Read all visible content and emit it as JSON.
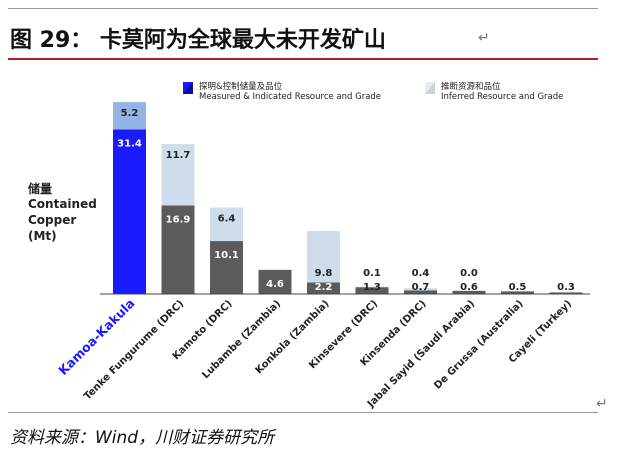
{
  "header": {
    "figure_title": "图 29： 卡莫阿为全球最大未开发矿山"
  },
  "footer": {
    "source": "资料来源：Wind，川财证券研究所"
  },
  "chart_data": {
    "type": "bar",
    "stacked": true,
    "ylabel_cn": "储量",
    "ylabel_lines": [
      "Contained",
      "Copper",
      "(Mt)"
    ],
    "ylim": [
      0,
      37
    ],
    "categories": [
      "Kamoa-Kakula",
      "Tenke Fungurume (DRC)",
      "Kamoto (DRC)",
      "Lubambe (Zambia)",
      "Konkola (Zambia)",
      "Kinsevere (DRC)",
      "Kinsenda (DRC)",
      "Jabal Sayid (Saudi Arabia)",
      "De Grussa (Australia)",
      "Cayeli (Turkey)"
    ],
    "highlight_category": "Kamoa-Kakula",
    "series": [
      {
        "name_cn": "探明&控制储量及品位",
        "name": "Measured & Indicated Resource and Grade",
        "values": [
          31.4,
          16.9,
          10.1,
          4.6,
          2.2,
          1.3,
          0.7,
          0.6,
          0.5,
          0.3
        ],
        "color": "#5b5b5b",
        "highlight_color": "#1a1aff"
      },
      {
        "name_cn": "推断资源和品位",
        "name": "Inferred Resource and Grade",
        "values": [
          5.2,
          11.7,
          6.4,
          null,
          9.8,
          0.1,
          0.4,
          0.0,
          null,
          null
        ],
        "color": "#cfdcec",
        "highlight_color": "#94b4e6"
      }
    ]
  }
}
